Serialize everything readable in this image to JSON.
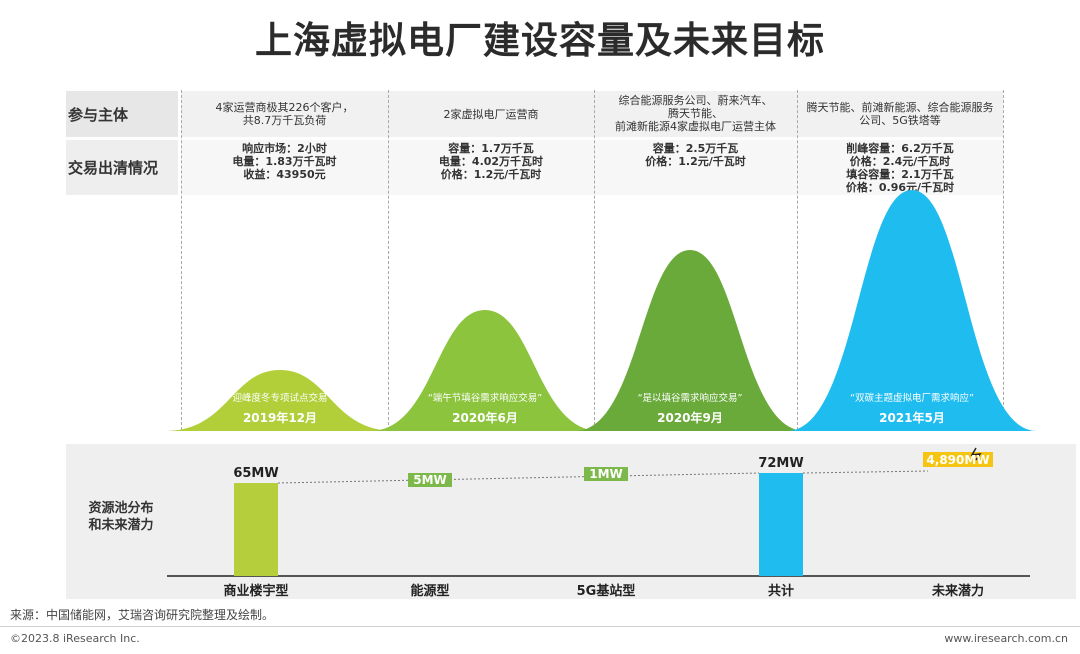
{
  "title": "上海虚拟电厂建设容量及未来目标",
  "row_labels": {
    "participants": "参与主体",
    "transactions": "交易出清情况"
  },
  "columns": [
    {
      "participants": [
        "4家运营商极其226个客户，",
        "共8.7万千瓦负荷"
      ],
      "transactions": [
        "响应市场：2小时",
        "电量：1.83万千瓦时",
        "收益：43950元"
      ],
      "event": "“迎峰度冬专项试点交易”",
      "date": "2019年12月"
    },
    {
      "participants": [
        "2家虚拟电厂运营商"
      ],
      "transactions": [
        "容量：1.7万千瓦",
        "电量：4.02万千瓦时",
        "价格：1.2元/千瓦时"
      ],
      "event": "“端午节填谷需求响应交易”",
      "date": "2020年6月"
    },
    {
      "participants": [
        "综合能源服务公司、蔚来汽车、",
        "腾天节能、",
        "前滩新能源4家虚拟电厂运营主体"
      ],
      "transactions": [
        "容量：2.5万千瓦",
        "价格：1.2元/千瓦时"
      ],
      "event": "“是以填谷需求响应交易”",
      "date": "2020年9月"
    },
    {
      "participants": [
        "腾天节能、前滩新能源、综合能源服务",
        "公司、5G铁塔等"
      ],
      "transactions": [
        "削峰容量：6.2万千瓦",
        "价格：2.4元/千瓦时",
        "填谷容量：2.1万千瓦",
        "价格：0.96元/千瓦时"
      ],
      "event": "“双碳主题虚拟电厂需求响应”",
      "date": "2021年5月"
    }
  ],
  "colors": {
    "hill_1": "#b2cf3a",
    "hill_2": "#8cc43e",
    "hill_3": "#6aaa3a",
    "hill_4": "#1fbcef",
    "bar_green": "#b4cf3b",
    "tag_green": "#7cb84a",
    "bar_blue": "#1fbcef",
    "bar_yellow": "#f6c514"
  },
  "lower_section": {
    "label_lines": [
      "资源池分布",
      "和未来潜力"
    ]
  },
  "chart_data": {
    "type": "bar",
    "categories": [
      "商业楼宇型",
      "能源型",
      "5G基站型",
      "共计",
      "未来潜力"
    ],
    "values": [
      65,
      5,
      1,
      72,
      4890
    ],
    "value_labels": [
      "65MW",
      "5MW",
      "1MW",
      "72MW",
      "4,890MW"
    ],
    "unit": "MW",
    "note": "waterfall-style; 未来潜力 bar is truncated"
  },
  "footer": {
    "source": "来源：中国储能网，艾瑞咨询研究院整理及绘制。",
    "copyright": "©2023.8 iResearch Inc.",
    "website": "www.iresearch.com.cn"
  }
}
